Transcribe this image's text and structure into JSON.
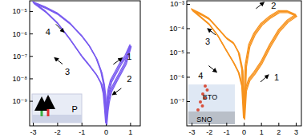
{
  "chart_data": [
    {
      "type": "line",
      "log": "y",
      "grid": false,
      "xlim": [
        -3.15,
        1.4
      ],
      "ylim": [
        8e-11,
        3e-05
      ],
      "xticks": [
        -3,
        -2,
        -1,
        0,
        1
      ],
      "yticks": [
        {
          "value": 1e-09,
          "label": "10⁻⁹"
        },
        {
          "value": 1e-08,
          "label": "10⁻⁸"
        },
        {
          "value": 1e-07,
          "label": "10⁻⁷"
        },
        {
          "value": 1e-06,
          "label": "10⁻⁶"
        },
        {
          "value": 1e-05,
          "label": "10⁻⁵"
        }
      ],
      "series": [
        {
          "color": "#7a5cf0",
          "x": [
            0,
            0.05,
            0.1,
            0.2,
            0.4,
            0.6,
            0.8,
            1.0,
            0.8,
            0.6,
            0.4,
            0.2,
            0.1,
            0.05,
            0,
            -0.05,
            -0.1,
            -0.2,
            -0.4,
            -0.7,
            -1.0,
            -1.5,
            -2.0,
            -2.5,
            -3.0,
            -2.5,
            -2.0,
            -1.5,
            -1.0,
            -0.7,
            -0.4,
            -0.2,
            -0.1,
            -0.05,
            0
          ],
          "values": [
            1e-10,
            1e-09,
            3e-09,
            8e-09,
            2e-08,
            5e-08,
            1e-07,
            3e-07,
            5e-08,
            2e-08,
            8e-09,
            3e-09,
            1e-09,
            4e-10,
            1e-10,
            5e-10,
            2e-09,
            6e-09,
            1.5e-08,
            4e-08,
            1e-07,
            6e-07,
            3e-06,
            1e-05,
            2.5e-05,
            1.5e-05,
            8e-06,
            3e-06,
            8e-07,
            3e-07,
            8e-08,
            2e-08,
            6e-09,
            2e-09,
            1.2e-10
          ]
        }
      ],
      "annotations": [
        {
          "text": "1",
          "x": 0.95,
          "y": 1e-07
        },
        {
          "text": "2",
          "x": 0.95,
          "y": 1e-08
        },
        {
          "text": "3",
          "x": -1.6,
          "y": 2e-08
        },
        {
          "text": "4",
          "x": -2.4,
          "y": 1.2e-06
        },
        {
          "text": "P",
          "x": -1.3,
          "y": 4.5e-10
        }
      ]
    },
    {
      "type": "line",
      "log": "y",
      "grid": false,
      "xlim": [
        -3.3,
        3.3
      ],
      "ylim": [
        1e-08,
        0.0014
      ],
      "xticks": [
        -3,
        -2,
        -1,
        0,
        1,
        2,
        3
      ],
      "yticks": [
        {
          "value": 1e-07,
          "label": "10⁻⁷"
        },
        {
          "value": 1e-06,
          "label": "10⁻⁶"
        },
        {
          "value": 1e-05,
          "label": "10⁻⁵"
        },
        {
          "value": 0.0001,
          "label": "10⁻⁴"
        },
        {
          "value": 0.001,
          "label": "10⁻³"
        }
      ],
      "series": [
        {
          "color": "#f7931e",
          "x": [
            0,
            0.1,
            0.3,
            0.6,
            1,
            1.5,
            2,
            2.5,
            3,
            2.5,
            2,
            1.5,
            1,
            0.6,
            0.3,
            0.1,
            0,
            -0.1,
            -0.3,
            -0.6,
            -1,
            -1.5,
            -2,
            -2.5,
            -3,
            -2.5,
            -2,
            -1.5,
            -1,
            -0.6,
            -0.3,
            -0.1,
            0
          ],
          "values": [
            2e-08,
            3e-07,
            8e-07,
            1.5e-06,
            4e-06,
            2e-05,
            8e-05,
            0.0002,
            0.00035,
            0.0005,
            0.0005,
            0.0003,
            0.00015,
            6e-05,
            2e-05,
            3e-06,
            2e-08,
            2e-06,
            1e-05,
            2.5e-05,
            4e-05,
            0.0001,
            0.00025,
            0.0004,
            0.0006,
            0.0003,
            0.00015,
            5e-05,
            1.2e-05,
            4e-06,
            1.5e-06,
            4e-07,
            2e-08
          ]
        }
      ],
      "annotations": [
        {
          "text": "1",
          "x": 1.87,
          "y": 1e-06
        },
        {
          "text": "2",
          "x": 1.7,
          "y": 0.0009
        },
        {
          "text": "3",
          "x": -2.1,
          "y": 3e-05
        },
        {
          "text": "4",
          "x": -2.5,
          "y": 1.2e-06
        },
        {
          "text": "BTO",
          "x": -1.96,
          "y": 1.6e-07
        },
        {
          "text": "SNO",
          "x": -2.28,
          "y": 1.9e-08
        }
      ]
    }
  ]
}
